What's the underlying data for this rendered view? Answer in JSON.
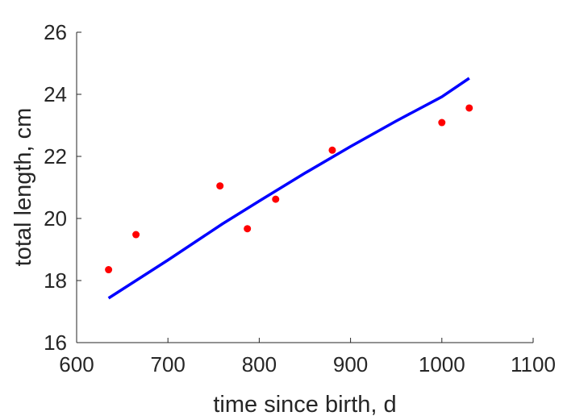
{
  "chart_data": {
    "type": "scatter",
    "xlabel": "time since birth, d",
    "ylabel": "total length, cm",
    "xlim": [
      600,
      1100
    ],
    "ylim": [
      16,
      26
    ],
    "x_ticks": [
      600,
      700,
      800,
      900,
      1000,
      1100
    ],
    "y_ticks": [
      16,
      18,
      20,
      22,
      24,
      26
    ],
    "grid": false,
    "series": [
      {
        "kind": "points",
        "color": "#ff0000",
        "points": [
          {
            "x": 635,
            "y": 18.35
          },
          {
            "x": 665,
            "y": 19.48
          },
          {
            "x": 757,
            "y": 21.05
          },
          {
            "x": 787,
            "y": 19.67
          },
          {
            "x": 818,
            "y": 20.62
          },
          {
            "x": 880,
            "y": 22.2
          },
          {
            "x": 1000,
            "y": 23.09
          },
          {
            "x": 1030,
            "y": 23.56
          }
        ]
      },
      {
        "kind": "line",
        "color": "#0000ff",
        "points": [
          {
            "x": 635,
            "y": 17.43
          },
          {
            "x": 700,
            "y": 18.66
          },
          {
            "x": 760,
            "y": 19.83
          },
          {
            "x": 800,
            "y": 20.56
          },
          {
            "x": 850,
            "y": 21.46
          },
          {
            "x": 900,
            "y": 22.32
          },
          {
            "x": 950,
            "y": 23.14
          },
          {
            "x": 1000,
            "y": 23.92
          },
          {
            "x": 1030,
            "y": 24.52
          }
        ]
      }
    ]
  }
}
